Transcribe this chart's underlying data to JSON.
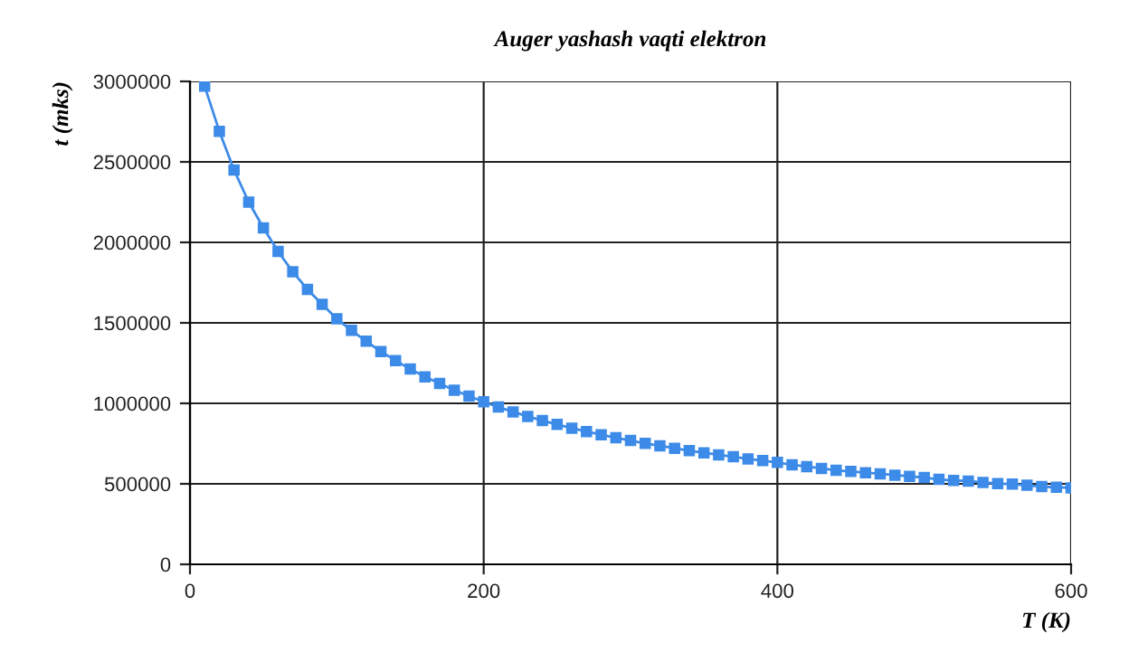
{
  "chart_data": {
    "type": "line",
    "title": "Auger yashash vaqti elektron",
    "xlabel": "T (K)",
    "ylabel": "t (mks)",
    "x": [
      10,
      20,
      30,
      40,
      50,
      60,
      70,
      80,
      90,
      100,
      110,
      120,
      130,
      140,
      150,
      160,
      170,
      180,
      190,
      200,
      210,
      220,
      230,
      240,
      250,
      260,
      270,
      280,
      290,
      300,
      310,
      320,
      330,
      340,
      350,
      360,
      370,
      380,
      390,
      400,
      410,
      420,
      430,
      440,
      450,
      460,
      470,
      480,
      490,
      500,
      510,
      520,
      530,
      540,
      550,
      560,
      570,
      580,
      590,
      600
    ],
    "series": [
      {
        "color": "#3d8be8",
        "values": [
          2970000,
          2690000,
          2450000,
          2250000,
          2090000,
          1944000,
          1817000,
          1708000,
          1615000,
          1525000,
          1453000,
          1386000,
          1322000,
          1266000,
          1213000,
          1165000,
          1124000,
          1082000,
          1045000,
          1010000,
          977000,
          947000,
          919000,
          893000,
          869000,
          846000,
          825000,
          805000,
          786000,
          769000,
          751000,
          736000,
          721000,
          706000,
          693000,
          680000,
          668000,
          655000,
          644000,
          633000,
          618000,
          607000,
          596000,
          584000,
          577000,
          569000,
          562000,
          554000,
          547000,
          539000,
          528000,
          521000,
          517000,
          509000,
          502000,
          498000,
          491000,
          483000,
          479000,
          475000
        ]
      }
    ],
    "xlim": [
      0,
      600
    ],
    "ylim": [
      0,
      3000000
    ],
    "xticks": [
      0,
      200,
      400,
      600
    ],
    "yticks": [
      0,
      500000,
      1000000,
      1500000,
      2000000,
      2500000,
      3000000
    ],
    "grid": true,
    "marker": "square",
    "line_style": "solid"
  }
}
